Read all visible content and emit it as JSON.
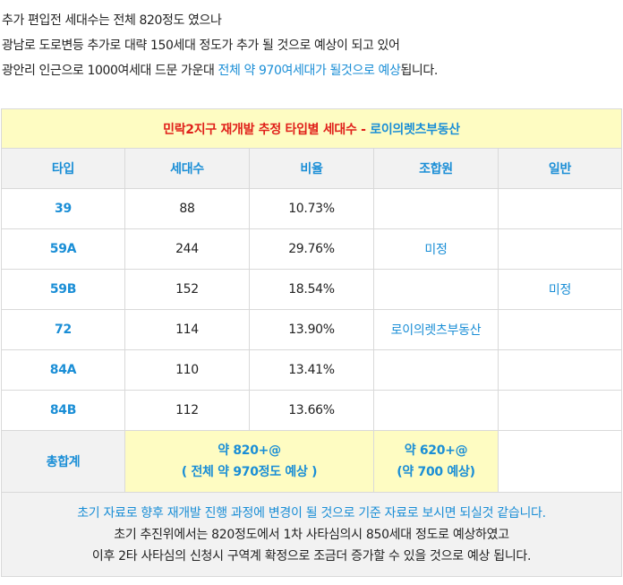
{
  "intro": {
    "line1": "추가 편입전 세대수는 전체 820정도 였으나",
    "line2": "광남로 도로변등 추가로 대략 150세대 정도가 추가 될 것으로 예상이 되고 있어",
    "line3_pre": "광안리 인근으로 1000여세대 드문 가운대 ",
    "line3_highlight": "전체 약 970여세대가 될것으로 예상",
    "line3_post": "됩니다."
  },
  "table": {
    "title_red": "민락2지구 재개발 추정 타입별 세대수 - ",
    "title_blue": "로이의렛츠부동산",
    "headers": [
      "타입",
      "세대수",
      "비율",
      "조합원",
      "일반"
    ],
    "rows": [
      {
        "type": "39",
        "units": "88",
        "ratio": "10.73%",
        "member": "",
        "general": ""
      },
      {
        "type": "59A",
        "units": "244",
        "ratio": "29.76%",
        "member": "미정",
        "general": ""
      },
      {
        "type": "59B",
        "units": "152",
        "ratio": "18.54%",
        "member": "",
        "general": "미정"
      },
      {
        "type": "72",
        "units": "114",
        "ratio": "13.90%",
        "member": "로이의렛츠부동산",
        "general": ""
      },
      {
        "type": "84A",
        "units": "110",
        "ratio": "13.41%",
        "member": "",
        "general": ""
      },
      {
        "type": "84B",
        "units": "112",
        "ratio": "13.66%",
        "member": "",
        "general": ""
      }
    ],
    "total": {
      "label": "총합계",
      "units_line1": "약 820+@",
      "units_line2": "( 전체 약 970정도 예상 )",
      "member_line1": "약 620+@",
      "member_line2": "(약 700 예상)"
    },
    "footer": {
      "line1": "초기 자료로 향후 재개발 진행 과정에 변경이 될 것으로 기준 자료로 보시면 되실것 같습니다.",
      "line2": "초기 추진위에서는 820정도에서 1차 사타심의시 850세대 정도로 예상하였고",
      "line3": "이후 2타 사타심의 신청시 구역계 확정으로 조금더 증가할 수 있을 것으로 예상 됩니다."
    }
  }
}
